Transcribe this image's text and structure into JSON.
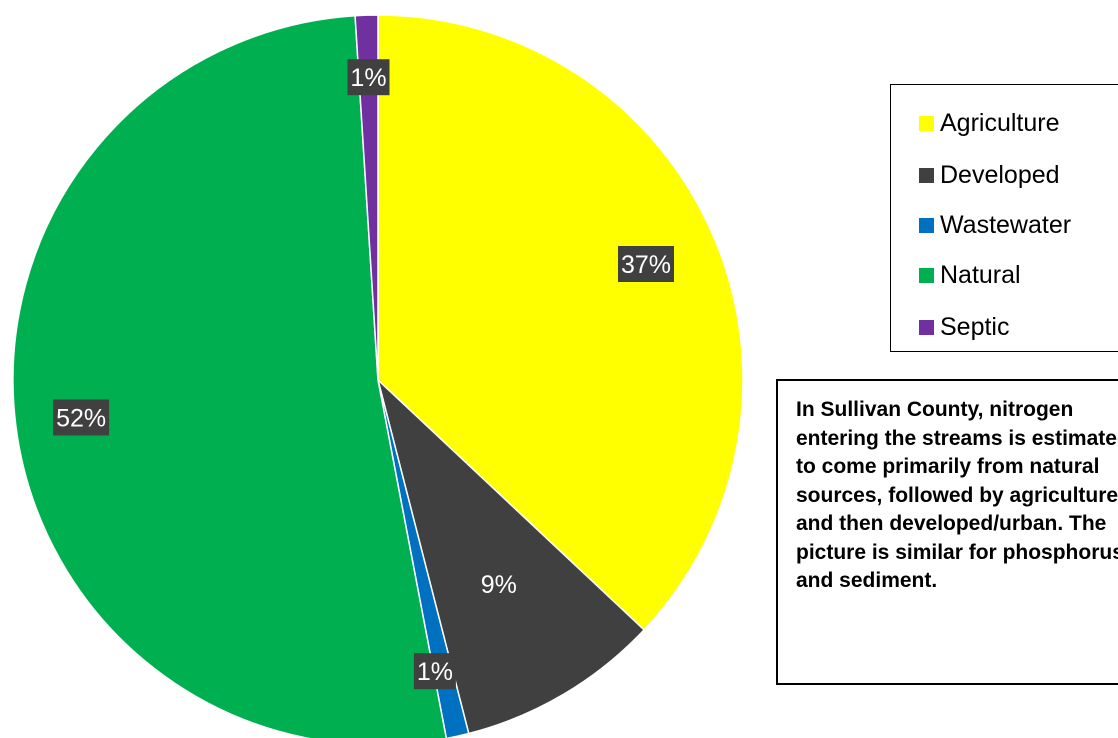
{
  "chart_data": {
    "type": "pie",
    "title": "",
    "categories": [
      "Agriculture",
      "Developed",
      "Wastewater",
      "Natural",
      "Septic"
    ],
    "values": [
      37,
      9,
      1,
      52,
      1
    ],
    "data_labels": [
      "37%",
      "9%",
      "1%",
      "52%",
      "1%"
    ],
    "colors": [
      "#ffff00",
      "#404040",
      "#0070c0",
      "#00b050",
      "#7030a0"
    ],
    "legend_position": "right"
  },
  "legend": {
    "items": [
      {
        "label": "Agriculture",
        "color": "#ffff00"
      },
      {
        "label": "Developed",
        "color": "#404040"
      },
      {
        "label": "Wastewater",
        "color": "#0070c0"
      },
      {
        "label": "Natural",
        "color": "#00b050"
      },
      {
        "label": "Septic",
        "color": "#7030a0"
      }
    ]
  },
  "note": {
    "text": "In Sullivan County, nitrogen entering the streams is estimated to come primarily from natural sources, followed by agriculture, and then developed/urban. The picture is similar for phosphorus and sediment."
  }
}
